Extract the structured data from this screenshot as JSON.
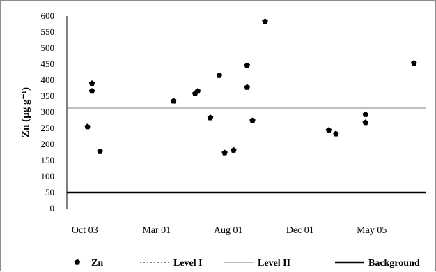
{
  "chart_data": {
    "type": "scatter",
    "title": "",
    "xlabel": "",
    "ylabel": "Zn (µg g⁻¹)",
    "ylim": [
      0,
      600
    ],
    "yticks": [
      0,
      50,
      100,
      150,
      200,
      250,
      300,
      350,
      400,
      450,
      500,
      550,
      600
    ],
    "xlim": [
      0,
      20
    ],
    "xticks": [
      {
        "label": "Oct 03",
        "x": 1.0
      },
      {
        "label": "Mar 01",
        "x": 5.0
      },
      {
        "label": "Aug 01",
        "x": 9.0
      },
      {
        "label": "Dec 01",
        "x": 13.0
      },
      {
        "label": "May 05",
        "x": 17.0
      }
    ],
    "grid": false,
    "legend_position": "bottom",
    "series": [
      {
        "name": "Zn",
        "kind": "points",
        "color": "#000000",
        "points": [
          {
            "x": 1.15,
            "y": 255
          },
          {
            "x": 1.4,
            "y": 390
          },
          {
            "x": 1.4,
            "y": 366
          },
          {
            "x": 1.85,
            "y": 178
          },
          {
            "x": 5.95,
            "y": 335
          },
          {
            "x": 7.15,
            "y": 358
          },
          {
            "x": 7.3,
            "y": 366
          },
          {
            "x": 8.0,
            "y": 283
          },
          {
            "x": 8.5,
            "y": 415
          },
          {
            "x": 8.8,
            "y": 174
          },
          {
            "x": 9.3,
            "y": 182
          },
          {
            "x": 10.05,
            "y": 446
          },
          {
            "x": 10.05,
            "y": 378
          },
          {
            "x": 10.35,
            "y": 274
          },
          {
            "x": 11.05,
            "y": 583
          },
          {
            "x": 14.6,
            "y": 244
          },
          {
            "x": 15.0,
            "y": 233
          },
          {
            "x": 16.65,
            "y": 293
          },
          {
            "x": 16.65,
            "y": 268
          },
          {
            "x": 19.35,
            "y": 453
          }
        ]
      },
      {
        "name": "Level I",
        "kind": "hline",
        "style": "dotted",
        "color": "#000000"
      },
      {
        "name": "Level II",
        "kind": "hline",
        "style": "thin",
        "color": "#7f7f7f",
        "y": 313
      },
      {
        "name": "Background",
        "kind": "hline",
        "style": "thick",
        "color": "#000000",
        "y": 50
      }
    ]
  }
}
